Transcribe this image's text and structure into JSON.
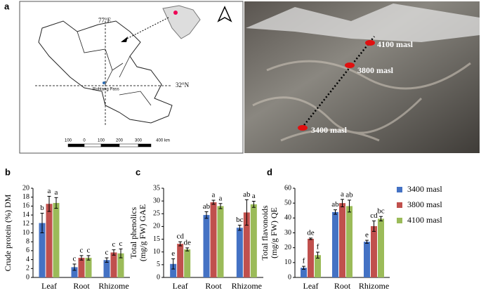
{
  "map": {
    "panel": "a",
    "lon": "77°E",
    "lat": "32°N",
    "place": "Rohtang Pass",
    "scale": [
      "100",
      "0",
      "100",
      "200",
      "300",
      "400 km"
    ]
  },
  "photo": {
    "labels": [
      "4100 masl",
      "3800 masl",
      "3400 masl"
    ]
  },
  "chart_data": [
    {
      "type": "bar",
      "panel": "b",
      "ylabel": [
        "Crude protein (%) DM"
      ],
      "categories": [
        "Leaf",
        "Root",
        "Rhizome"
      ],
      "ylim": [
        0,
        20
      ],
      "yticks": [
        0,
        2,
        4,
        6,
        8,
        10,
        12,
        14,
        16,
        18,
        20
      ],
      "series": [
        {
          "color": "#4472c4",
          "values": [
            12.2,
            2.3,
            3.9
          ],
          "errors": [
            2.2,
            0.7,
            0.5
          ],
          "letters": [
            "b",
            "c",
            "c"
          ]
        },
        {
          "color": "#c0504d",
          "values": [
            16.5,
            4.4,
            5.6
          ],
          "errors": [
            1.7,
            0.5,
            0.6
          ],
          "letters": [
            "a",
            "c",
            "c"
          ]
        },
        {
          "color": "#9bbb59",
          "values": [
            16.7,
            4.4,
            5.4
          ],
          "errors": [
            1.2,
            0.5,
            1.0
          ],
          "letters": [
            "a",
            "c",
            "c"
          ]
        }
      ]
    },
    {
      "type": "bar",
      "panel": "c",
      "ylabel": [
        "Total phenolics",
        "(mg/g FW) GAE"
      ],
      "categories": [
        "Leaf",
        "Root",
        "Rhizome"
      ],
      "ylim": [
        0,
        35
      ],
      "yticks": [
        0,
        5,
        10,
        15,
        20,
        25,
        30,
        35
      ],
      "series": [
        {
          "color": "#4472c4",
          "values": [
            5.3,
            24.5,
            19.5
          ],
          "errors": [
            2,
            1.3,
            1
          ],
          "letters": [
            "e",
            "ab",
            "bc"
          ]
        },
        {
          "color": "#c0504d",
          "values": [
            13.2,
            29.5,
            25.5
          ],
          "errors": [
            0.8,
            0.8,
            5
          ],
          "letters": [
            "cd",
            "a",
            "ab"
          ]
        },
        {
          "color": "#9bbb59",
          "values": [
            11,
            28,
            28.7
          ],
          "errors": [
            0.6,
            1,
            1.2
          ],
          "letters": [
            "de",
            "a",
            "a"
          ]
        }
      ]
    },
    {
      "type": "bar",
      "panel": "d",
      "ylabel": [
        "Total flavonoids",
        "(mg/g FW) QE"
      ],
      "categories": [
        "Leaf",
        "Root",
        "Rhizome"
      ],
      "ylim": [
        0,
        60
      ],
      "yticks": [
        0,
        10,
        20,
        30,
        40,
        50,
        60
      ],
      "series": [
        {
          "name": "3400 masl",
          "color": "#4472c4",
          "values": [
            6.5,
            44,
            24
          ],
          "errors": [
            1,
            1.5,
            1
          ],
          "letters": [
            "f",
            "ab",
            "e"
          ]
        },
        {
          "name": "3800 masl",
          "color": "#c0504d",
          "values": [
            26,
            50,
            34.5
          ],
          "errors": [
            0.5,
            2.5,
            3.5
          ],
          "letters": [
            "de",
            "a",
            "cd"
          ]
        },
        {
          "name": "4100 masl",
          "color": "#9bbb59",
          "values": [
            15,
            48,
            39.5
          ],
          "errors": [
            2,
            4,
            1.5
          ],
          "letters": [
            "f",
            "ab",
            "bc"
          ]
        }
      ]
    }
  ]
}
